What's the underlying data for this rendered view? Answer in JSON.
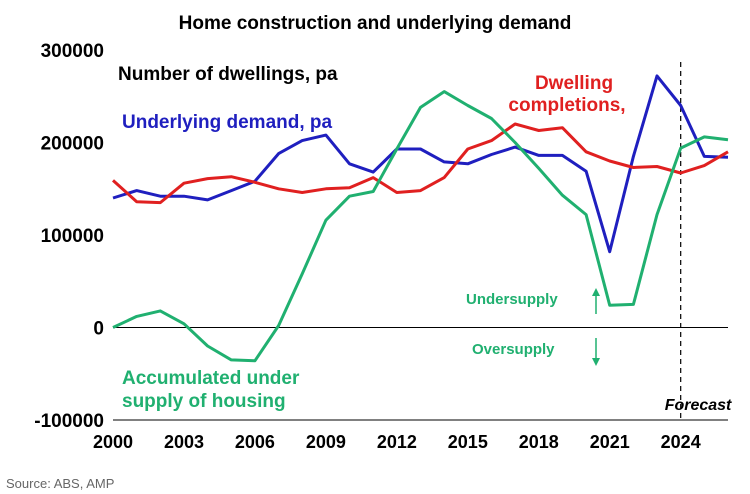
{
  "chart_data": {
    "type": "line",
    "title": "Home construction and underlying demand",
    "ylabel": "Number of dwellings, pa",
    "xlabel": "",
    "xlim": [
      2000,
      2026
    ],
    "ylim": [
      -100000,
      300000
    ],
    "y_ticks": [
      "300000",
      "200000",
      "100000",
      "0",
      "-100000"
    ],
    "y_tick_values": [
      300000,
      200000,
      100000,
      0,
      -100000
    ],
    "x_ticks": [
      "2000",
      "2003",
      "2006",
      "2009",
      "2012",
      "2015",
      "2018",
      "2021",
      "2024"
    ],
    "x_tick_values": [
      2000,
      2003,
      2006,
      2009,
      2012,
      2015,
      2018,
      2021,
      2024
    ],
    "grid": false,
    "forecast_year": 2024,
    "forecast_label": "Forecast",
    "series": [
      {
        "name": "Underlying demand, pa",
        "color": "#1f1fbf",
        "x": [
          2000,
          2001,
          2002,
          2003,
          2004,
          2005,
          2006,
          2007,
          2008,
          2009,
          2010,
          2011,
          2012,
          2013,
          2014,
          2015,
          2016,
          2017,
          2018,
          2019,
          2020,
          2021,
          2022,
          2023,
          2024,
          2025,
          2026
        ],
        "values": [
          140000,
          148000,
          142000,
          142000,
          138000,
          148000,
          158000,
          188000,
          202000,
          208000,
          177000,
          168000,
          193000,
          193000,
          179000,
          177000,
          187000,
          195000,
          186000,
          186000,
          169000,
          82000,
          185000,
          272000,
          240000,
          185000,
          184000
        ]
      },
      {
        "name": "Dwelling completions,",
        "color": "#e02020",
        "x": [
          2000,
          2001,
          2002,
          2003,
          2004,
          2005,
          2006,
          2007,
          2008,
          2009,
          2010,
          2011,
          2012,
          2013,
          2014,
          2015,
          2016,
          2017,
          2018,
          2019,
          2020,
          2021,
          2022,
          2023,
          2024,
          2025,
          2026
        ],
        "values": [
          159000,
          136000,
          135000,
          156000,
          161000,
          163000,
          157000,
          150000,
          146000,
          150000,
          151000,
          162000,
          146000,
          148000,
          162000,
          193000,
          202000,
          220000,
          213000,
          216000,
          190000,
          180000,
          173000,
          174000,
          167000,
          175000,
          190000
        ]
      },
      {
        "name": "Accumulated under supply of housing",
        "color": "#20b070",
        "x": [
          2000,
          2001,
          2002,
          2003,
          2004,
          2005,
          2006,
          2007,
          2008,
          2009,
          2010,
          2011,
          2012,
          2013,
          2014,
          2015,
          2016,
          2017,
          2018,
          2019,
          2020,
          2021,
          2022,
          2023,
          2024,
          2025,
          2026
        ],
        "values": [
          0,
          12000,
          18000,
          4000,
          -20000,
          -35000,
          -36000,
          2000,
          58000,
          116000,
          142000,
          147000,
          193000,
          238000,
          255000,
          240000,
          226000,
          200000,
          172000,
          143000,
          122000,
          24000,
          25000,
          122000,
          194000,
          206000,
          203000
        ]
      }
    ],
    "annotations": {
      "ylabel_text": "Number of dwellings, pa",
      "demand_label": "Underlying demand, pa",
      "completions_label_1": "Dwelling",
      "completions_label_2": "completions,",
      "undersupply_label_1": "Accumulated under",
      "undersupply_label_2": "supply of housing",
      "undersupply_arrow_label": "Undersupply",
      "oversupply_arrow_label": "Oversupply"
    }
  },
  "source": "Source: ABS, AMP"
}
